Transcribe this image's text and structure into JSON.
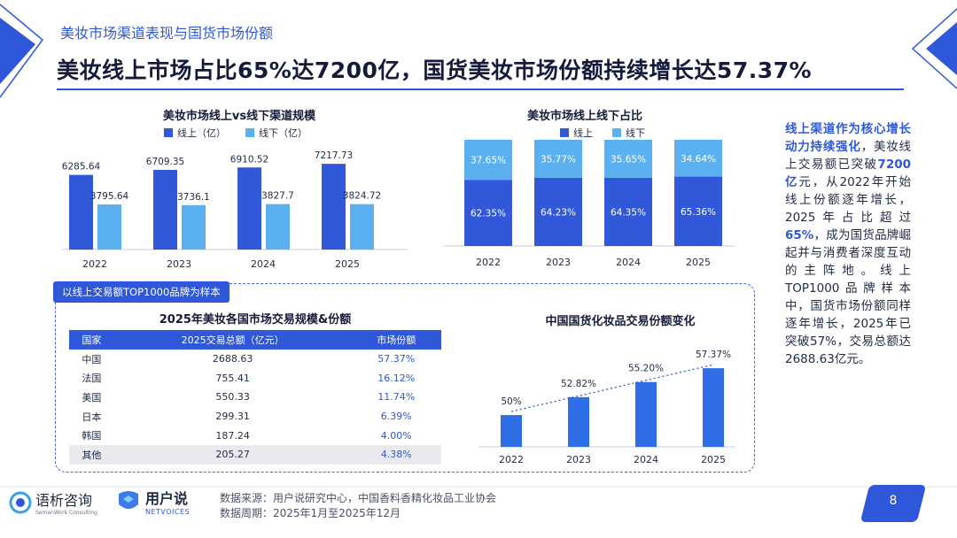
{
  "header": {
    "subtitle": "美妆市场渠道表现与国货市场份额",
    "title": "美妆线上市场占比65%达7200亿，国货美妆市场份额持续增长达57.37%"
  },
  "chart_data": [
    {
      "type": "bar",
      "title": "美妆市场线上vs线下渠道规模",
      "categories": [
        "2022",
        "2023",
        "2024",
        "2025"
      ],
      "series": [
        {
          "name": "线上（亿）",
          "values": [
            6285.64,
            6709.35,
            6910.52,
            7217.73
          ],
          "labels": [
            "6285.64",
            "6709.35",
            "6910.52",
            "7217.73"
          ]
        },
        {
          "name": "线下（亿）",
          "values": [
            3795.64,
            3736.1,
            3827.7,
            3824.72
          ],
          "labels": [
            "3795.64",
            "3736.1",
            "3827.7",
            "3824.72"
          ]
        }
      ],
      "colors": [
        "#3058d8",
        "#5bb1ef"
      ],
      "ylim": [
        0,
        7600
      ]
    },
    {
      "type": "bar",
      "title": "美妆市场线上线下占比",
      "stacked": true,
      "categories": [
        "2022",
        "2023",
        "2024",
        "2025"
      ],
      "series": [
        {
          "name": "线上",
          "values": [
            62.35,
            64.23,
            64.35,
            65.36
          ],
          "labels": [
            "62.35%",
            "64.23%",
            "64.35%",
            "65.36%"
          ]
        },
        {
          "name": "线下",
          "values": [
            37.65,
            35.77,
            35.65,
            34.64
          ],
          "labels": [
            "37.65%",
            "35.77%",
            "35.65%",
            "34.64%"
          ]
        }
      ],
      "colors": [
        "#3058d8",
        "#5bb1ef"
      ],
      "ylim": [
        0,
        100
      ]
    },
    {
      "type": "table",
      "title": "2025年美妆各国市场交易规模&份额",
      "columns": [
        "国家",
        "2025交易总额（亿元）",
        "市场份额"
      ],
      "rows": [
        [
          "中国",
          "2688.63",
          "57.37%"
        ],
        [
          "法国",
          "755.41",
          "16.12%"
        ],
        [
          "美国",
          "550.33",
          "11.74%"
        ],
        [
          "日本",
          "299.31",
          "6.39%"
        ],
        [
          "韩国",
          "187.24",
          "4.00%"
        ],
        [
          "其他",
          "205.27",
          "4.38%"
        ]
      ]
    },
    {
      "type": "bar",
      "title": "中国国货化妆品交易份额变化",
      "categories": [
        "2022",
        "2023",
        "2024",
        "2025"
      ],
      "values": [
        50,
        52.82,
        55.2,
        57.37
      ],
      "labels": [
        "50%",
        "52.82%",
        "55.20%",
        "57.37%"
      ],
      "trendline": true,
      "ylim": [
        45,
        58.5
      ]
    }
  ],
  "sample_note": "以线上交易额TOP1000品牌为样本",
  "sidebar": {
    "paragraph": [
      {
        "text": "线上渠道作为核心增长动力持续强化",
        "hl": true
      },
      {
        "text": "，美妆线上交易额已突破",
        "hl": false
      },
      {
        "text": "7200亿",
        "hl": true
      },
      {
        "text": "元，从2022年开始线上份额逐年增长，2025年占比超过",
        "hl": false
      },
      {
        "text": "65%",
        "hl": true
      },
      {
        "text": "，成为国货品牌崛起并与消费者深度互动的主阵地。线上TOP1000品牌样本中，国货市场份额同样逐年增长，2025年已突破57%，交易总额达2688.63亿元。",
        "hl": false
      }
    ]
  },
  "footer": {
    "logo1_name": "语析咨询",
    "logo1_en": "SemanWork Consulting",
    "logo2_name": "用户说",
    "logo2_en": "NETVOICES",
    "source": "数据来源：用户说研究中心，中国香料香精化妆品工业协会",
    "period": "数据周期：2025年1月至2025年12月",
    "page": "8"
  },
  "colors": {
    "accent": "#2f57d9",
    "online": "#3058d8",
    "offline": "#5bb1ef"
  }
}
